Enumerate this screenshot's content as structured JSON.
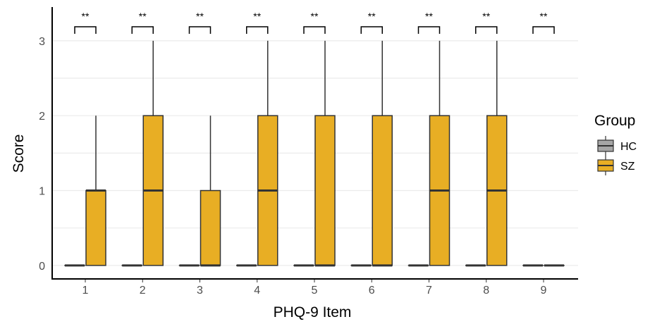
{
  "chart_data": {
    "type": "boxplot",
    "xlabel": "PHQ-9 Item",
    "ylabel": "Score",
    "categories": [
      "1",
      "2",
      "3",
      "4",
      "5",
      "6",
      "7",
      "8",
      "9"
    ],
    "y_ticks": [
      "0",
      "1",
      "2",
      "3"
    ],
    "ylim": [
      -0.18,
      3.45
    ],
    "grid": "horizontal major and minor lines",
    "legend": {
      "title": "Group",
      "position": "right"
    },
    "significance_labels": [
      "**",
      "**",
      "**",
      "**",
      "**",
      "**",
      "**",
      "**",
      "**"
    ],
    "series": [
      {
        "name": "HC",
        "color": "#a6a6a6",
        "boxes": [
          {
            "min": 0,
            "q1": 0,
            "median": 0,
            "q3": 0,
            "max": 0
          },
          {
            "min": 0,
            "q1": 0,
            "median": 0,
            "q3": 0,
            "max": 0
          },
          {
            "min": 0,
            "q1": 0,
            "median": 0,
            "q3": 0,
            "max": 0
          },
          {
            "min": 0,
            "q1": 0,
            "median": 0,
            "q3": 0,
            "max": 0
          },
          {
            "min": 0,
            "q1": 0,
            "median": 0,
            "q3": 0,
            "max": 0
          },
          {
            "min": 0,
            "q1": 0,
            "median": 0,
            "q3": 0,
            "max": 0
          },
          {
            "min": 0,
            "q1": 0,
            "median": 0,
            "q3": 0,
            "max": 0
          },
          {
            "min": 0,
            "q1": 0,
            "median": 0,
            "q3": 0,
            "max": 0
          },
          {
            "min": 0,
            "q1": 0,
            "median": 0,
            "q3": 0,
            "max": 0
          }
        ]
      },
      {
        "name": "SZ",
        "color": "#e8ae24",
        "boxes": [
          {
            "min": 0,
            "q1": 0,
            "median": 1,
            "q3": 1,
            "max": 2
          },
          {
            "min": 0,
            "q1": 0,
            "median": 1,
            "q3": 2,
            "max": 3
          },
          {
            "min": 0,
            "q1": 0,
            "median": 0,
            "q3": 1,
            "max": 2
          },
          {
            "min": 0,
            "q1": 0,
            "median": 1,
            "q3": 2,
            "max": 3
          },
          {
            "min": 0,
            "q1": 0,
            "median": 0,
            "q3": 2,
            "max": 3
          },
          {
            "min": 0,
            "q1": 0,
            "median": 0,
            "q3": 2,
            "max": 3
          },
          {
            "min": 0,
            "q1": 0,
            "median": 1,
            "q3": 2,
            "max": 3
          },
          {
            "min": 0,
            "q1": 0,
            "median": 1,
            "q3": 2,
            "max": 3
          },
          {
            "min": 0,
            "q1": 0,
            "median": 0,
            "q3": 0,
            "max": 0
          }
        ]
      }
    ]
  }
}
